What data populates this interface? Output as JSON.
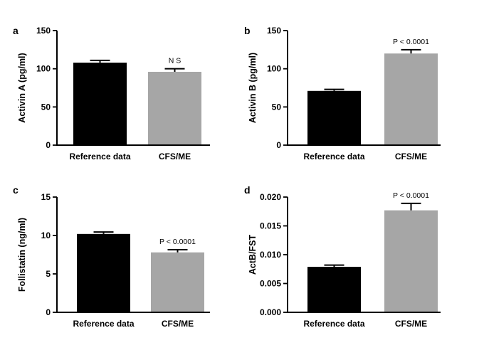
{
  "chart_data": [
    {
      "panel": "a",
      "type": "bar",
      "categories": [
        "Reference data",
        "CFS/ME"
      ],
      "values": [
        108,
        96
      ],
      "errors": [
        3,
        4
      ],
      "ylabel": "Activin A (pg/ml)",
      "ylim": [
        0,
        150
      ],
      "yticks": [
        "0",
        "50",
        "100",
        "150"
      ],
      "annotation": "N S",
      "colors": [
        "#000000",
        "#a6a6a6"
      ],
      "grid": false
    },
    {
      "panel": "b",
      "type": "bar",
      "categories": [
        "Reference data",
        "CFS/ME"
      ],
      "values": [
        71,
        120
      ],
      "errors": [
        2,
        5
      ],
      "ylabel": "Activin B (pg/ml)",
      "ylim": [
        0,
        150
      ],
      "yticks": [
        "0",
        "50",
        "100",
        "150"
      ],
      "annotation": "P < 0.0001",
      "colors": [
        "#000000",
        "#a6a6a6"
      ],
      "grid": false
    },
    {
      "panel": "c",
      "type": "bar",
      "categories": [
        "Reference data",
        "CFS/ME"
      ],
      "values": [
        10.2,
        7.8
      ],
      "errors": [
        0.25,
        0.35
      ],
      "ylabel": "Follistatin (ng/ml)",
      "ylim": [
        0,
        15
      ],
      "yticks": [
        "0",
        "5",
        "10",
        "15"
      ],
      "annotation": "P < 0.0001",
      "colors": [
        "#000000",
        "#a6a6a6"
      ],
      "grid": false
    },
    {
      "panel": "d",
      "type": "bar",
      "categories": [
        "Reference data",
        "CFS/ME"
      ],
      "values": [
        0.0079,
        0.0177
      ],
      "errors": [
        0.0003,
        0.0012
      ],
      "ylabel": "ActB/FST",
      "ylim": [
        0,
        0.02
      ],
      "yticks": [
        "0.000",
        "0.005",
        "0.010",
        "0.015",
        "0.020"
      ],
      "annotation": "P < 0.0001",
      "colors": [
        "#000000",
        "#a6a6a6"
      ],
      "grid": false
    }
  ]
}
